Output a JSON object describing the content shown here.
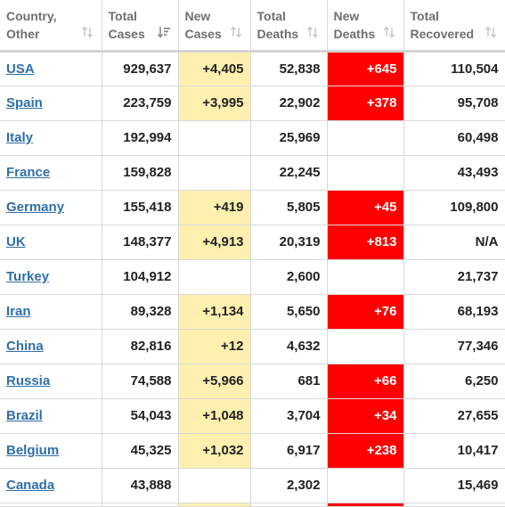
{
  "colors": {
    "new_cases_bg": "#fff0b0",
    "new_deaths_bg": "#ff0000",
    "link": "#2f6fa7"
  },
  "headers": [
    {
      "l1": "Country,",
      "l2": "Other"
    },
    {
      "l1": "Total",
      "l2": "Cases"
    },
    {
      "l1": "New",
      "l2": "Cases"
    },
    {
      "l1": "Total",
      "l2": "Deaths"
    },
    {
      "l1": "New",
      "l2": "Deaths"
    },
    {
      "l1": "Total",
      "l2": "Recovered"
    }
  ],
  "rows": [
    {
      "country": "USA",
      "total_cases": "929,637",
      "new_cases": "+4,405",
      "total_deaths": "52,838",
      "new_deaths": "+645",
      "total_recovered": "110,504"
    },
    {
      "country": "Spain",
      "total_cases": "223,759",
      "new_cases": "+3,995",
      "total_deaths": "22,902",
      "new_deaths": "+378",
      "total_recovered": "95,708"
    },
    {
      "country": "Italy",
      "total_cases": "192,994",
      "new_cases": "",
      "total_deaths": "25,969",
      "new_deaths": "",
      "total_recovered": "60,498"
    },
    {
      "country": "France",
      "total_cases": "159,828",
      "new_cases": "",
      "total_deaths": "22,245",
      "new_deaths": "",
      "total_recovered": "43,493"
    },
    {
      "country": "Germany",
      "total_cases": "155,418",
      "new_cases": "+419",
      "total_deaths": "5,805",
      "new_deaths": "+45",
      "total_recovered": "109,800"
    },
    {
      "country": "UK",
      "total_cases": "148,377",
      "new_cases": "+4,913",
      "total_deaths": "20,319",
      "new_deaths": "+813",
      "total_recovered": "N/A"
    },
    {
      "country": "Turkey",
      "total_cases": "104,912",
      "new_cases": "",
      "total_deaths": "2,600",
      "new_deaths": "",
      "total_recovered": "21,737"
    },
    {
      "country": "Iran",
      "total_cases": "89,328",
      "new_cases": "+1,134",
      "total_deaths": "5,650",
      "new_deaths": "+76",
      "total_recovered": "68,193"
    },
    {
      "country": "China",
      "total_cases": "82,816",
      "new_cases": "+12",
      "total_deaths": "4,632",
      "new_deaths": "",
      "total_recovered": "77,346"
    },
    {
      "country": "Russia",
      "total_cases": "74,588",
      "new_cases": "+5,966",
      "total_deaths": "681",
      "new_deaths": "+66",
      "total_recovered": "6,250"
    },
    {
      "country": "Brazil",
      "total_cases": "54,043",
      "new_cases": "+1,048",
      "total_deaths": "3,704",
      "new_deaths": "+34",
      "total_recovered": "27,655"
    },
    {
      "country": "Belgium",
      "total_cases": "45,325",
      "new_cases": "+1,032",
      "total_deaths": "6,917",
      "new_deaths": "+238",
      "total_recovered": "10,417"
    },
    {
      "country": "Canada",
      "total_cases": "43,888",
      "new_cases": "",
      "total_deaths": "2,302",
      "new_deaths": "",
      "total_recovered": "15,469"
    }
  ],
  "sort": {
    "active_column": 1,
    "icon": "sort-arrows-icon"
  }
}
